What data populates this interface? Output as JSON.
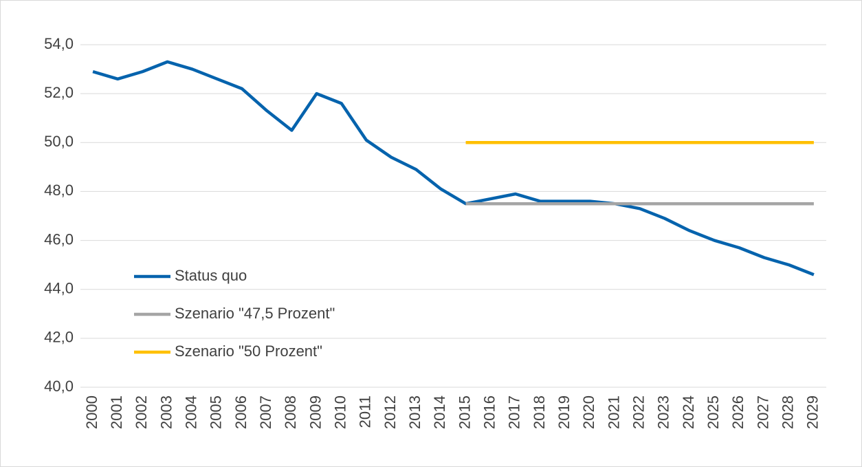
{
  "chart_data": {
    "type": "line",
    "categories": [
      "2000",
      "2001",
      "2002",
      "2003",
      "2004",
      "2005",
      "2006",
      "2007",
      "2008",
      "2009",
      "2010",
      "2011",
      "2012",
      "2013",
      "2014",
      "2015",
      "2016",
      "2017",
      "2018",
      "2019",
      "2020",
      "2021",
      "2022",
      "2023",
      "2024",
      "2025",
      "2026",
      "2027",
      "2028",
      "2029"
    ],
    "series": [
      {
        "name": "Status quo",
        "color": "#0563ad",
        "values": [
          52.9,
          52.6,
          52.9,
          53.3,
          53.0,
          52.6,
          52.2,
          51.3,
          50.5,
          52.0,
          51.6,
          50.1,
          49.4,
          48.9,
          48.1,
          47.5,
          47.7,
          47.9,
          47.6,
          47.6,
          47.6,
          47.5,
          47.3,
          46.9,
          46.4,
          46.0,
          45.7,
          45.3,
          45.0,
          44.6
        ]
      },
      {
        "name": "Szenario \"47,5 Prozent\"",
        "color": "#a5a5a5",
        "values": [
          null,
          null,
          null,
          null,
          null,
          null,
          null,
          null,
          null,
          null,
          null,
          null,
          null,
          null,
          null,
          47.5,
          47.5,
          47.5,
          47.5,
          47.5,
          47.5,
          47.5,
          47.5,
          47.5,
          47.5,
          47.5,
          47.5,
          47.5,
          47.5,
          47.5
        ]
      },
      {
        "name": "Szenario \"50 Prozent\"",
        "color": "#ffc000",
        "values": [
          null,
          null,
          null,
          null,
          null,
          null,
          null,
          null,
          null,
          null,
          null,
          null,
          null,
          null,
          null,
          50,
          50,
          50,
          50,
          50,
          50,
          50,
          50,
          50,
          50,
          50,
          50,
          50,
          50,
          50
        ]
      }
    ],
    "ylim": [
      40,
      54
    ],
    "yticks": [
      {
        "value": 40,
        "label": "40,0"
      },
      {
        "value": 42,
        "label": "42,0"
      },
      {
        "value": 44,
        "label": "44,0"
      },
      {
        "value": 46,
        "label": "46,0"
      },
      {
        "value": 48,
        "label": "48,0"
      },
      {
        "value": 50,
        "label": "50,0"
      },
      {
        "value": 52,
        "label": "52,0"
      },
      {
        "value": 54,
        "label": "54,0"
      }
    ],
    "grid": true,
    "legend": "lower left"
  }
}
